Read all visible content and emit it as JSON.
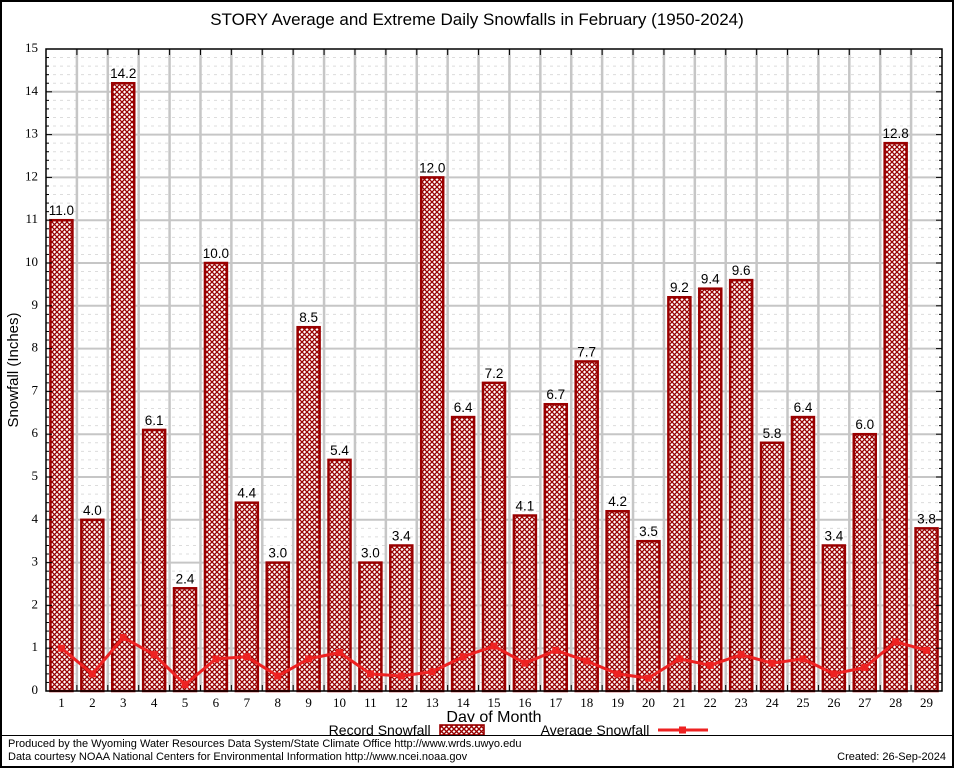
{
  "chart_data": {
    "type": "bar",
    "title": "STORY Average and Extreme Daily Snowfalls in February (1950-2024)",
    "xlabel": "Day of Month",
    "ylabel": "Snowfall (Inches)",
    "ylim": [
      0,
      15
    ],
    "y_major_step": 1,
    "y_minor_step": 0.2,
    "x_tick_labels": [
      "1",
      "2",
      "3",
      "4",
      "5",
      "6",
      "7",
      "8",
      "9",
      "10",
      "11",
      "12",
      "13",
      "14",
      "15",
      "16",
      "17",
      "18",
      "19",
      "20",
      "21",
      "22",
      "23",
      "24",
      "25",
      "26",
      "27",
      "28",
      "29"
    ],
    "categories": [
      1,
      2,
      3,
      4,
      5,
      6,
      7,
      8,
      9,
      10,
      11,
      12,
      13,
      14,
      15,
      16,
      17,
      18,
      19,
      20,
      21,
      22,
      23,
      24,
      25,
      26,
      27,
      28,
      29
    ],
    "series": [
      {
        "name": "Record Snowfall",
        "kind": "bar",
        "color": "#990000",
        "values": [
          11.0,
          4.0,
          14.2,
          6.1,
          2.4,
          10.0,
          4.4,
          3.0,
          8.5,
          5.4,
          3.0,
          3.4,
          12.0,
          6.4,
          7.2,
          4.1,
          6.7,
          7.7,
          4.2,
          3.5,
          9.2,
          9.4,
          9.6,
          5.8,
          6.4,
          3.4,
          6.0,
          12.8,
          3.8
        ],
        "labels": [
          "11.0",
          "4.0",
          "14.2",
          "6.1",
          "2.4",
          "10.0",
          "4.4",
          "3.0",
          "8.5",
          "5.4",
          "3.0",
          "3.4",
          "12.0",
          "6.4",
          "7.2",
          "4.1",
          "6.7",
          "7.7",
          "4.2",
          "3.5",
          "9.2",
          "9.4",
          "9.6",
          "5.8",
          "6.4",
          "3.4",
          "6.0",
          "12.8",
          "3.8"
        ]
      },
      {
        "name": "Average Snowfall",
        "kind": "line",
        "color": "#ee2222",
        "values": [
          1.0,
          0.4,
          1.25,
          0.85,
          0.15,
          0.75,
          0.8,
          0.35,
          0.75,
          0.9,
          0.4,
          0.35,
          0.45,
          0.8,
          1.05,
          0.65,
          0.95,
          0.7,
          0.4,
          0.3,
          0.75,
          0.6,
          0.85,
          0.65,
          0.75,
          0.4,
          0.55,
          1.15,
          0.95
        ]
      }
    ],
    "grid": "on",
    "legend_position": "bottom"
  },
  "legend": {
    "record_label": "Record Snowfall",
    "average_label": "Average Snowfall"
  },
  "footer": {
    "line1": "Produced by the Wyoming Water Resources Data System/State Climate Office http://www.wrds.uwyo.edu",
    "line2": "Data courtesy NOAA National Centers for Environmental Information http://www.ncei.noaa.gov",
    "created": "Created: 26-Sep-2024"
  },
  "colors": {
    "bar_border": "#990000",
    "bar_hatch": "#990000",
    "line": "#ee2222",
    "grid_major": "#c6c6c6",
    "grid_minor": "#dcdcdc",
    "axis": "#000000",
    "background": "#ffffff"
  }
}
